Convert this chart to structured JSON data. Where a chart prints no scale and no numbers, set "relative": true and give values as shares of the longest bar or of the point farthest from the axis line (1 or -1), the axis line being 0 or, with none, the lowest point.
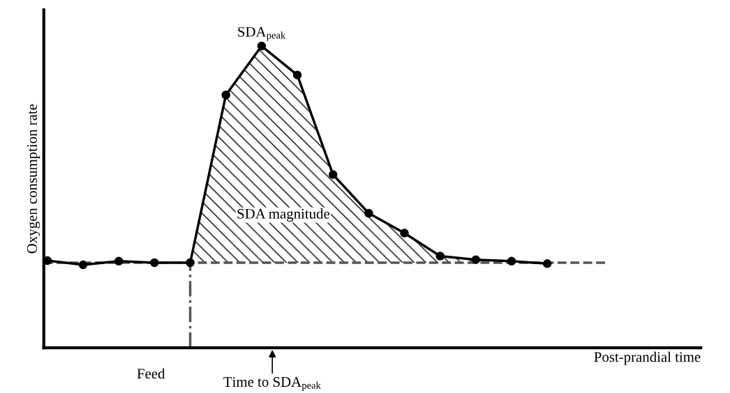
{
  "chart_data": {
    "type": "line",
    "relative": true,
    "xlabel": "Post-prandial time",
    "ylabel": "Oxygen consumption rate",
    "categories": [
      null,
      null,
      null,
      null,
      null,
      null,
      null,
      null,
      null,
      null,
      null,
      null,
      null,
      null,
      null
    ],
    "series": [
      {
        "color": "#000000",
        "values": [
          0.289,
          0.275,
          0.287,
          0.282,
          0.282,
          0.838,
          1,
          0.904,
          0.574,
          0.446,
          0.38,
          0.304,
          0.292,
          0.287,
          0.279
        ]
      }
    ],
    "marker": "circle",
    "line_style": "solid",
    "ref_lines": [
      {
        "axis": "y",
        "value": 0.282,
        "color": "#555555",
        "line_style": "dashed"
      }
    ],
    "annotations": [
      "SDA$_{peak}$",
      "SDA magnitude",
      "Feed",
      "Time to SDA$_{peak}$"
    ]
  }
}
